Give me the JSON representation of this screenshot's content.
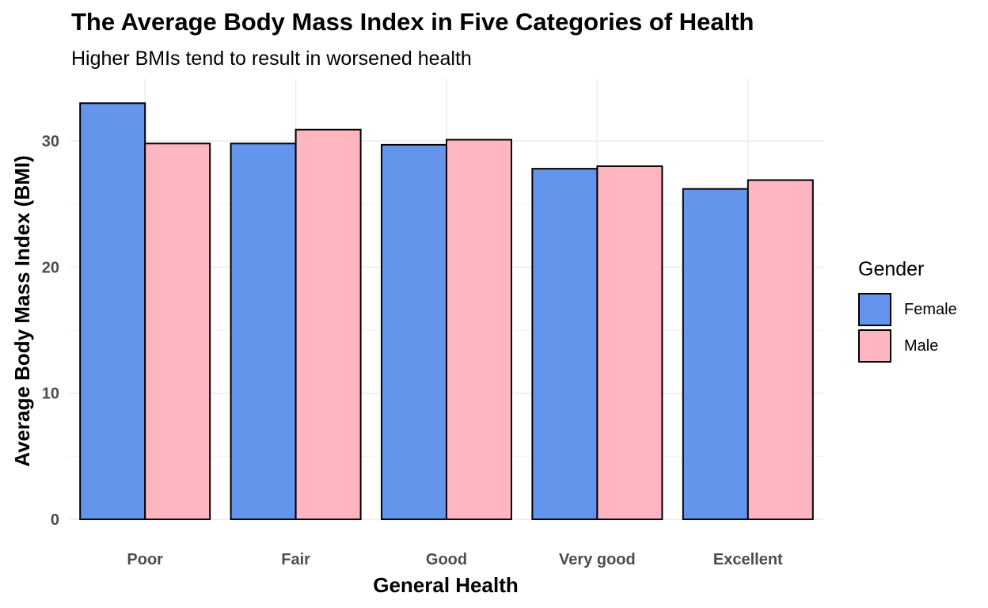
{
  "chart_data": {
    "type": "bar",
    "title": "The Average Body Mass Index in Five Categories of Health",
    "subtitle": "Higher BMIs tend to result in worsened health",
    "xlabel": "General Health",
    "ylabel": "Average Body Mass Index (BMI)",
    "categories": [
      "Poor",
      "Fair",
      "Good",
      "Very good",
      "Excellent"
    ],
    "series": [
      {
        "name": "Female",
        "color": "#6495ED",
        "values": [
          33.0,
          29.8,
          29.7,
          27.8,
          26.2
        ]
      },
      {
        "name": "Male",
        "color": "#FFB6C1",
        "values": [
          29.8,
          30.9,
          30.1,
          28.0,
          26.9
        ]
      }
    ],
    "ylim": [
      0,
      33
    ],
    "yticks": [
      0,
      10,
      20,
      30
    ],
    "grid": true,
    "legend": {
      "title": "Gender",
      "placement": "right"
    }
  }
}
